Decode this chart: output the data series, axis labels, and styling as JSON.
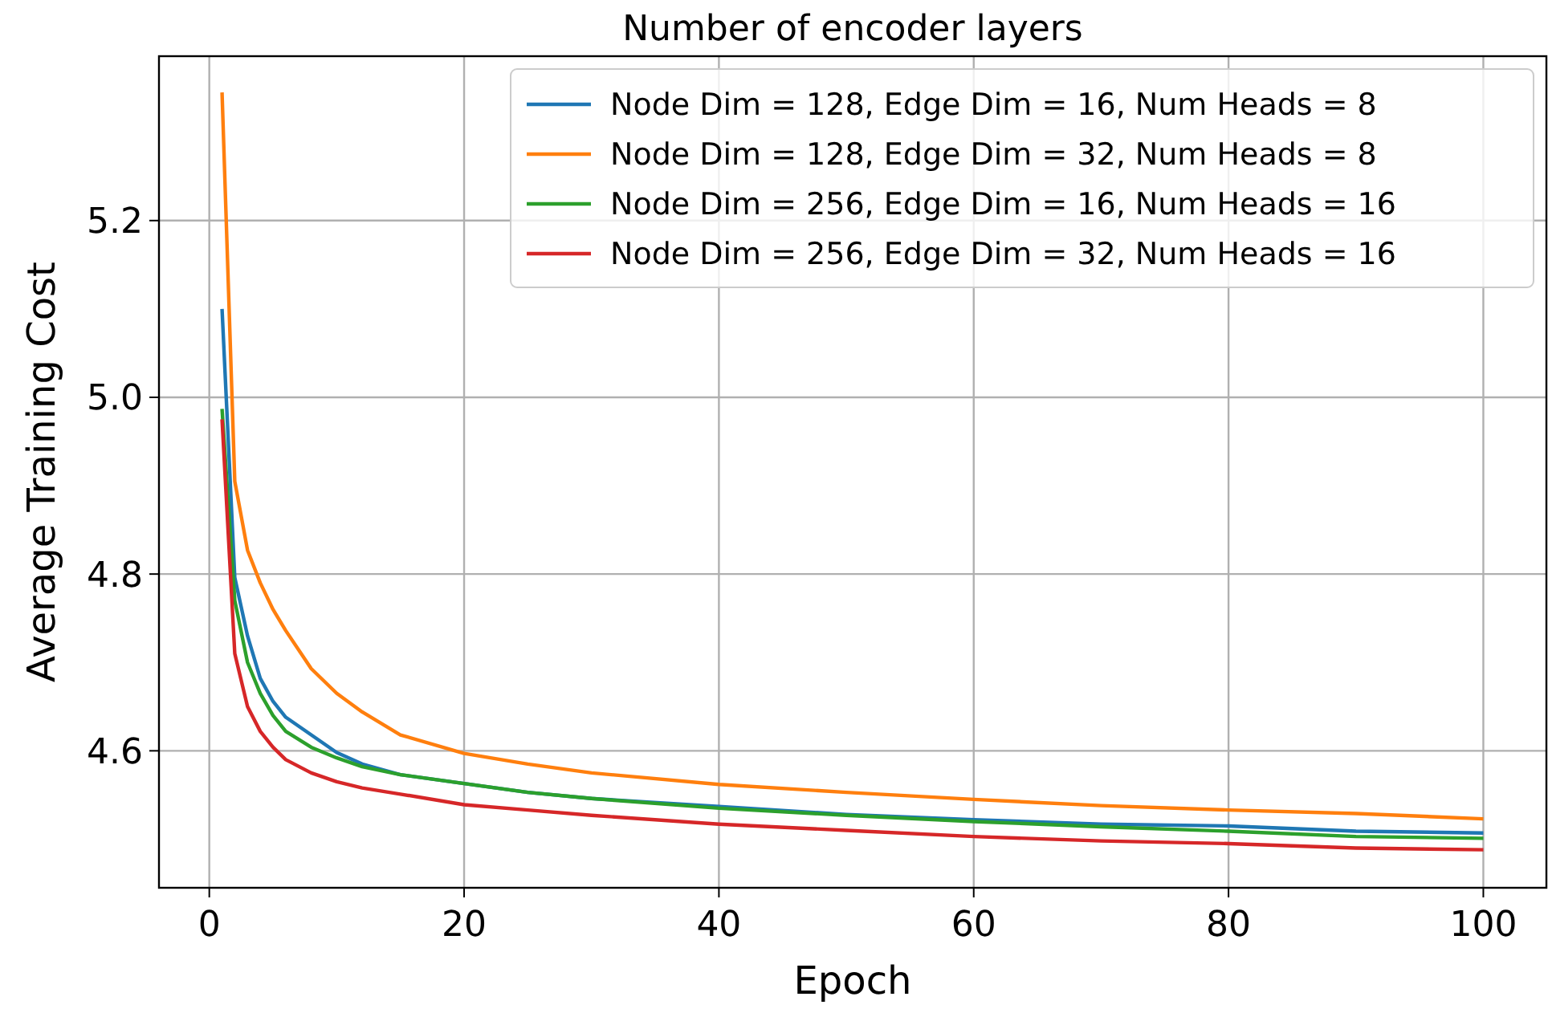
{
  "chart_data": {
    "type": "line",
    "title": "Number of encoder layers",
    "xlabel": "Epoch",
    "ylabel": "Average Training Cost",
    "xlim": [
      -3.95,
      104.95
    ],
    "ylim": [
      4.445,
      5.386
    ],
    "xticks": [
      0,
      20,
      40,
      60,
      80,
      100
    ],
    "yticks": [
      4.6,
      4.8,
      {
        "value": 5.0,
        "label": "5.0"
      },
      5.2
    ],
    "grid": true,
    "legend": "top right",
    "marker": "none",
    "line_style": "solid",
    "x": [
      1,
      2,
      3,
      4,
      5,
      6,
      8,
      10,
      12,
      15,
      20,
      25,
      30,
      40,
      50,
      60,
      70,
      80,
      90,
      100
    ],
    "series": [
      {
        "name": "Node Dim = 128, Edge Dim = 16, Num Heads = 8",
        "color": "#1f77b4",
        "values": [
          5.1,
          4.796,
          4.73,
          4.682,
          4.656,
          4.638,
          4.618,
          4.598,
          4.585,
          4.573,
          4.563,
          4.553,
          4.546,
          4.537,
          4.528,
          4.522,
          4.517,
          4.515,
          4.509,
          4.507
        ]
      },
      {
        "name": "Node Dim = 128, Edge Dim = 32, Num Heads = 8",
        "color": "#ff7f0e",
        "values": [
          5.345,
          4.905,
          4.827,
          4.79,
          4.76,
          4.736,
          4.693,
          4.665,
          4.644,
          4.618,
          4.597,
          4.585,
          4.575,
          4.562,
          4.553,
          4.545,
          4.538,
          4.533,
          4.529,
          4.523
        ]
      },
      {
        "name": "Node Dim = 256, Edge Dim = 16, Num Heads = 16",
        "color": "#2ca02c",
        "values": [
          4.987,
          4.77,
          4.7,
          4.665,
          4.64,
          4.622,
          4.604,
          4.592,
          4.582,
          4.573,
          4.563,
          4.553,
          4.546,
          4.535,
          4.527,
          4.52,
          4.514,
          4.509,
          4.503,
          4.501
        ]
      },
      {
        "name": "Node Dim = 256, Edge Dim = 32, Num Heads = 16",
        "color": "#d62728",
        "values": [
          4.975,
          4.71,
          4.65,
          4.622,
          4.604,
          4.59,
          4.575,
          4.565,
          4.558,
          4.551,
          4.539,
          4.533,
          4.527,
          4.517,
          4.51,
          4.503,
          4.498,
          4.495,
          4.49,
          4.488
        ]
      }
    ]
  }
}
